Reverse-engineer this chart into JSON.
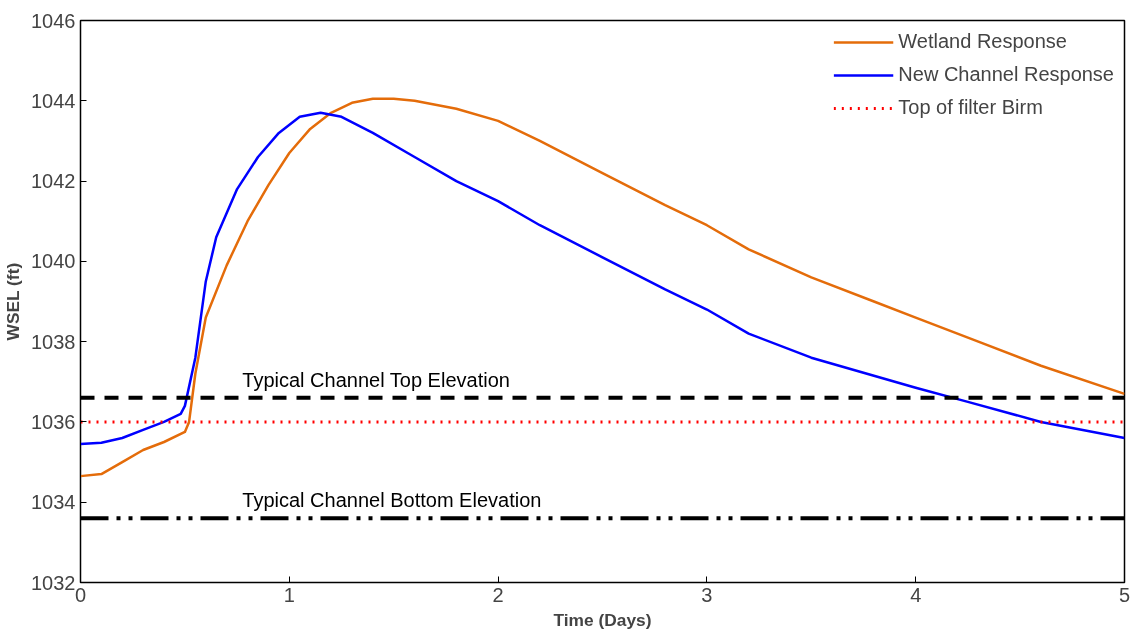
{
  "chart_data": {
    "type": "line",
    "xlabel": "Time (Days)",
    "ylabel": "WSEL (ft)",
    "xlim": [
      0,
      5
    ],
    "ylim": [
      1032,
      1046
    ],
    "xticks": [
      0,
      1,
      2,
      3,
      4,
      5
    ],
    "yticks": [
      1032,
      1034,
      1036,
      1038,
      1040,
      1042,
      1044,
      1046
    ],
    "grid": false,
    "legend": "top right",
    "marker": "none",
    "series": [
      {
        "name": "Wetland Response",
        "color": "#e46c0a",
        "line_style": "solid",
        "x": [
          0,
          0.1,
          0.2,
          0.3,
          0.4,
          0.5,
          0.52,
          0.55,
          0.6,
          0.7,
          0.8,
          0.9,
          1.0,
          1.1,
          1.2,
          1.3,
          1.4,
          1.5,
          1.6,
          1.8,
          2.0,
          2.2,
          2.5,
          2.8,
          3.0,
          3.2,
          3.5,
          3.8,
          4.0,
          4.3,
          4.6,
          5.0
        ],
        "values": [
          1034.65,
          1034.7,
          1035.0,
          1035.3,
          1035.5,
          1035.75,
          1036.0,
          1037.2,
          1038.6,
          1039.9,
          1041.0,
          1041.9,
          1042.7,
          1043.3,
          1043.7,
          1043.95,
          1044.05,
          1044.05,
          1044.0,
          1043.8,
          1043.5,
          1043.0,
          1042.2,
          1041.4,
          1040.9,
          1040.3,
          1039.6,
          1039.0,
          1038.6,
          1038.0,
          1037.4,
          1036.7
        ]
      },
      {
        "name": "New Channel Response",
        "color": "#0000ff",
        "line_style": "solid",
        "x": [
          0,
          0.1,
          0.2,
          0.3,
          0.4,
          0.48,
          0.5,
          0.55,
          0.6,
          0.65,
          0.75,
          0.85,
          0.95,
          1.05,
          1.15,
          1.25,
          1.4,
          1.6,
          1.8,
          2.0,
          2.2,
          2.5,
          2.8,
          3.0,
          3.2,
          3.5,
          4.0,
          4.25,
          4.6,
          5.0
        ],
        "values": [
          1035.45,
          1035.48,
          1035.6,
          1035.8,
          1036.0,
          1036.2,
          1036.4,
          1037.6,
          1039.5,
          1040.6,
          1041.8,
          1042.6,
          1043.2,
          1043.6,
          1043.7,
          1043.6,
          1043.2,
          1042.6,
          1042.0,
          1041.5,
          1040.9,
          1040.1,
          1039.3,
          1038.8,
          1038.2,
          1037.6,
          1036.85,
          1036.5,
          1036.0,
          1035.6
        ]
      },
      {
        "name": "Top of filter Birm",
        "color": "#ff0000",
        "line_style": "dotted",
        "x": [
          0,
          5
        ],
        "values": [
          1036,
          1036
        ]
      }
    ],
    "ref_lines": [
      {
        "axis": "y",
        "value": 1036.6,
        "label": "Typical Channel Top Elevation",
        "color": "#000000",
        "line_style": "dashed"
      },
      {
        "axis": "y",
        "value": 1033.6,
        "label": "Typical Channel Bottom Elevation",
        "color": "#000000",
        "line_style": "dashdot"
      }
    ]
  }
}
